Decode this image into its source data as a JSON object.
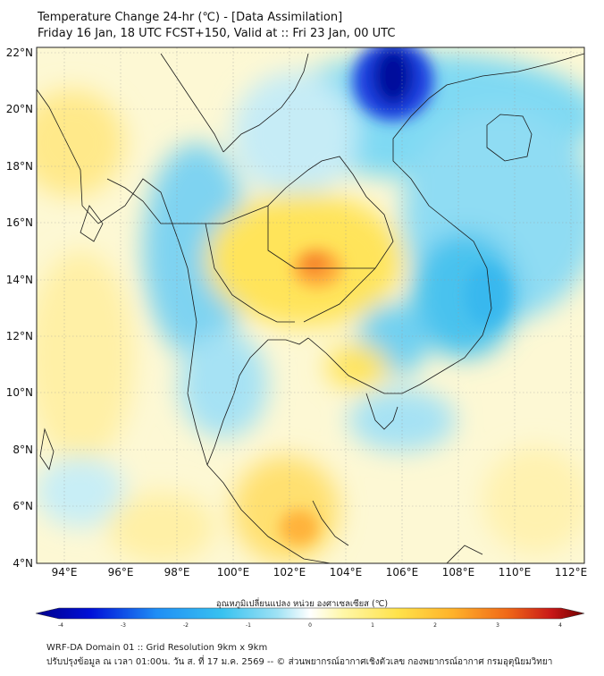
{
  "header": {
    "title_line1": "Temperature Change 24-hr (℃) - [Data Assimilation]",
    "title_line2": "Friday 16 Jan, 18 UTC FCST+150, Valid at :: Fri 23 Jan, 00 UTC"
  },
  "map": {
    "lat_labels": [
      "22°N",
      "20°N",
      "18°N",
      "16°N",
      "14°N",
      "12°N",
      "10°N",
      "8°N",
      "6°N",
      "4°N"
    ],
    "lon_labels": [
      "94°E",
      "96°E",
      "98°E",
      "100°E",
      "102°E",
      "104°E",
      "106°E",
      "108°E",
      "110°E",
      "112°E"
    ],
    "lat_range": [
      4,
      22
    ],
    "lon_range": [
      93,
      112.5
    ]
  },
  "colorbar": {
    "label": "อุณหภูมิเปลี่ยนแปลง หน่วย องศาเซลเซียส (℃)",
    "ticks": [
      "-4",
      "-3",
      "-2",
      "-1",
      "0",
      "1",
      "2",
      "3",
      "4"
    ],
    "range": [
      -4,
      4
    ],
    "colors": [
      "#00008a",
      "#0010d8",
      "#1f8ef5",
      "#38c2f0",
      "#9fe2f4",
      "#ffffff",
      "#fff7a8",
      "#ffe24a",
      "#ffb22a",
      "#f06818",
      "#c81818",
      "#6e0000"
    ]
  },
  "footer": {
    "line1": "WRF-DA Domain 01 :: Grid Resolution 9km x 9km",
    "line2": "ปรับปรุงข้อมูล ณ เวลา 01:00น. วัน ส. ที่ 17 ม.ค. 2569 -- © ส่วนพยากรณ์อากาศเชิงตัวเลข กองพยากรณ์อากาศ กรมอุตุนิยมวิทยา"
  }
}
